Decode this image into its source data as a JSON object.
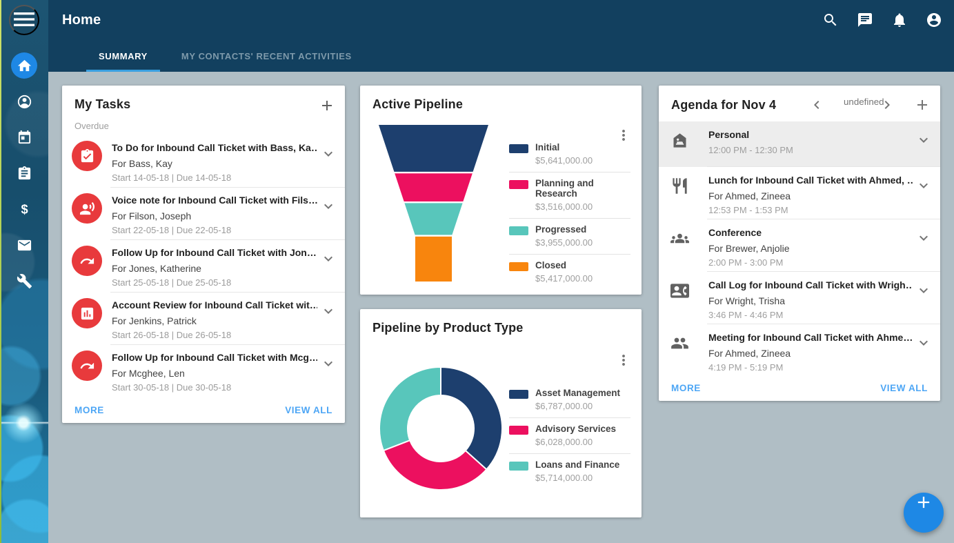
{
  "colors": {
    "header_bg": "#12405f",
    "content_bg": "#b0bec5",
    "accent_blue": "#1e88e5",
    "link_blue": "#4da6f5",
    "tab_underline": "#3aa0e0",
    "task_icon_red": "#e83a3c",
    "navy": "#1d3f6e",
    "pink": "#ec105f",
    "teal": "#58c6bb",
    "orange": "#f8850d"
  },
  "header": {
    "title": "Home",
    "icons": [
      "search",
      "chat",
      "notifications",
      "account"
    ]
  },
  "tabs": [
    {
      "label": "SUMMARY",
      "active": true
    },
    {
      "label": "MY CONTACTS' RECENT ACTIVITIES",
      "active": false
    }
  ],
  "sidebar": {
    "items": [
      {
        "name": "home",
        "icon": "home-icon",
        "active": true
      },
      {
        "name": "contacts",
        "icon": "contacts-icon",
        "active": false
      },
      {
        "name": "calendar",
        "icon": "calendar-icon",
        "active": false
      },
      {
        "name": "tasks",
        "icon": "tasks-icon",
        "active": false
      },
      {
        "name": "opportunities",
        "icon": "money-icon",
        "active": false
      },
      {
        "name": "mail",
        "icon": "mail-icon",
        "active": false
      },
      {
        "name": "tools",
        "icon": "tools-icon",
        "active": false
      }
    ]
  },
  "tasks_card": {
    "title": "My Tasks",
    "section_label": "Overdue",
    "items": [
      {
        "icon": "todo-icon",
        "title": "To Do for Inbound Call Ticket with Bass, Ka…",
        "for": "For Bass, Kay",
        "dates": "Start 14-05-18 | Due 14-05-18"
      },
      {
        "icon": "voice-note-icon",
        "title": "Voice note for Inbound Call Ticket with Fils…",
        "for": "For Filson, Joseph",
        "dates": "Start 22-05-18 | Due 22-05-18"
      },
      {
        "icon": "follow-up-icon",
        "title": "Follow Up for Inbound Call Ticket with Jon…",
        "for": "For Jones, Katherine",
        "dates": "Start 25-05-18 | Due 25-05-18"
      },
      {
        "icon": "account-review-icon",
        "title": "Account Review for Inbound Call Ticket wit…",
        "for": "For Jenkins, Patrick",
        "dates": "Start 26-05-18 | Due 26-05-18"
      },
      {
        "icon": "follow-up-icon",
        "title": "Follow Up for Inbound Call Ticket with Mcg…",
        "for": "For Mcghee, Len",
        "dates": "Start 30-05-18 | Due 30-05-18"
      }
    ],
    "more_label": "MORE",
    "view_all_label": "VIEW ALL"
  },
  "chart_data": [
    {
      "type": "funnel",
      "title": "Active Pipeline",
      "categories": [
        "Initial",
        "Planning and Research",
        "Progressed",
        "Closed"
      ],
      "values": [
        5641000,
        3516000,
        3955000,
        5417000
      ],
      "value_labels": [
        "$5,641,000.00",
        "$3,516,000.00",
        "$3,955,000.00",
        "$5,417,000.00"
      ],
      "colors": [
        "#1d3f6e",
        "#ec105f",
        "#58c6bb",
        "#f8850d"
      ],
      "legend_position": "right"
    },
    {
      "type": "donut",
      "title": "Pipeline by Product Type",
      "categories": [
        "Asset Management",
        "Advisory Services",
        "Loans and Finance"
      ],
      "values": [
        6787000,
        6028000,
        5714000
      ],
      "value_labels": [
        "$6,787,000.00",
        "$6,028,000.00",
        "$5,714,000.00"
      ],
      "colors": [
        "#1d3f6e",
        "#ec105f",
        "#58c6bb"
      ],
      "legend_position": "right",
      "start_angle_deg": 0,
      "direction": "clockwise"
    }
  ],
  "agenda_card": {
    "title": "Agenda for Nov 4",
    "items": [
      {
        "icon": "personal-icon",
        "title": "Personal",
        "for": "",
        "time": "12:00 PM - 12:30 PM",
        "highlighted": true
      },
      {
        "icon": "lunch-icon",
        "title": "Lunch for Inbound Call Ticket with Ahmed, …",
        "for": "For Ahmed, Zineea",
        "time": "12:53 PM - 1:53 PM",
        "highlighted": false
      },
      {
        "icon": "conference-icon",
        "title": "Conference",
        "for": "For Brewer, Anjolie",
        "time": "2:00 PM - 3:00 PM",
        "highlighted": false
      },
      {
        "icon": "call-log-icon",
        "title": "Call Log for Inbound Call Ticket with Wrigh…",
        "for": "For Wright, Trisha",
        "time": "3:46 PM - 4:46 PM",
        "highlighted": false
      },
      {
        "icon": "meeting-icon",
        "title": "Meeting for Inbound Call Ticket with Ahme…",
        "for": "For Ahmed, Zineea",
        "time": "4:19 PM - 5:19 PM",
        "highlighted": false
      }
    ],
    "more_label": "MORE",
    "view_all_label": "VIEW ALL"
  }
}
